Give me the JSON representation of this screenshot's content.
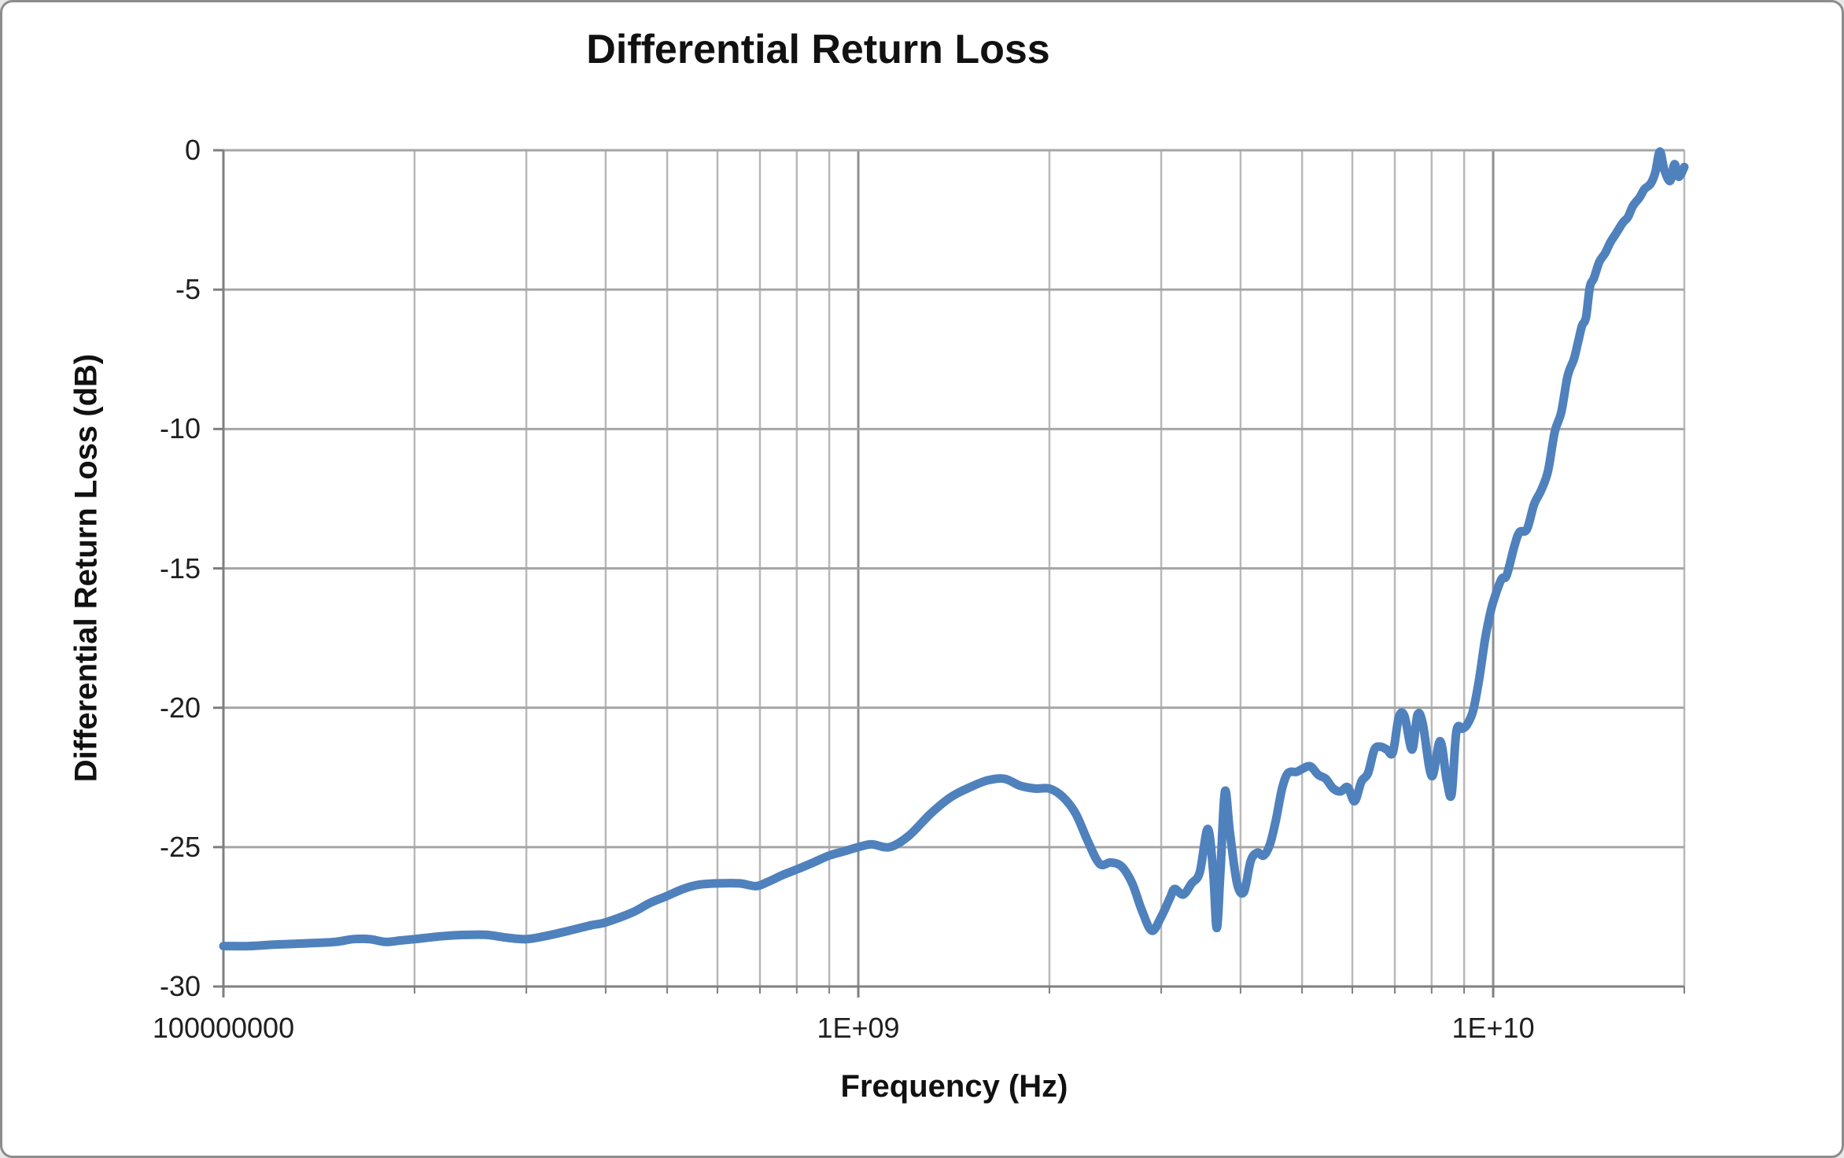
{
  "chart_data": {
    "type": "line",
    "title": "Differential Return Loss",
    "xlabel": "Frequency (Hz)",
    "ylabel": "Differential Return Loss (dB)",
    "x_scale": "log",
    "x_range": [
      100000000.0,
      20000000000.0
    ],
    "y_range": [
      -30,
      0
    ],
    "grid": true,
    "legend": "none",
    "y_ticks": [
      0,
      -5,
      -10,
      -15,
      -20,
      -25,
      -30
    ],
    "y_tick_labels": [
      "0",
      "-5",
      "-10",
      "-15",
      "-20",
      "-25",
      "-30"
    ],
    "x_ticks": [
      {
        "value": 100000000.0,
        "label": "100000000"
      },
      {
        "value": 1000000000.0,
        "label": "1E+09"
      },
      {
        "value": 10000000000.0,
        "label": "1E+10"
      }
    ],
    "colors": {
      "series": "#4f81bd",
      "grid_horizontal": "#a6a6a6",
      "grid_minor_vertical": "#b8b8b8",
      "grid_decade_vertical": "#8f8f8f",
      "axis": "#7f7f7f",
      "text": "#1f1f1f"
    },
    "series": [
      {
        "name": "Differential Return Loss",
        "points": [
          [
            100000000.0,
            -28.55
          ],
          [
            110000000.0,
            -28.55
          ],
          [
            120000000.0,
            -28.5
          ],
          [
            135000000.0,
            -28.45
          ],
          [
            150000000.0,
            -28.4
          ],
          [
            160000000.0,
            -28.3
          ],
          [
            170000000.0,
            -28.3
          ],
          [
            180000000.0,
            -28.4
          ],
          [
            190000000.0,
            -28.35
          ],
          [
            200000000.0,
            -28.3
          ],
          [
            220000000.0,
            -28.2
          ],
          [
            240000000.0,
            -28.15
          ],
          [
            260000000.0,
            -28.15
          ],
          [
            280000000.0,
            -28.25
          ],
          [
            300000000.0,
            -28.3
          ],
          [
            320000000.0,
            -28.2
          ],
          [
            350000000.0,
            -28.0
          ],
          [
            380000000.0,
            -27.8
          ],
          [
            400000000.0,
            -27.7
          ],
          [
            440000000.0,
            -27.35
          ],
          [
            470000000.0,
            -27.0
          ],
          [
            500000000.0,
            -26.75
          ],
          [
            530000000.0,
            -26.5
          ],
          [
            560000000.0,
            -26.35
          ],
          [
            600000000.0,
            -26.3
          ],
          [
            650000000.0,
            -26.3
          ],
          [
            690000000.0,
            -26.4
          ],
          [
            720000000.0,
            -26.25
          ],
          [
            760000000.0,
            -26.0
          ],
          [
            800000000.0,
            -25.8
          ],
          [
            850000000.0,
            -25.55
          ],
          [
            900000000.0,
            -25.3
          ],
          [
            950000000.0,
            -25.15
          ],
          [
            1000000000.0,
            -25.0
          ],
          [
            1050000000.0,
            -24.9
          ],
          [
            1120000000.0,
            -25.0
          ],
          [
            1200000000.0,
            -24.6
          ],
          [
            1300000000.0,
            -23.8
          ],
          [
            1400000000.0,
            -23.2
          ],
          [
            1500000000.0,
            -22.85
          ],
          [
            1600000000.0,
            -22.6
          ],
          [
            1700000000.0,
            -22.55
          ],
          [
            1800000000.0,
            -22.8
          ],
          [
            1900000000.0,
            -22.9
          ],
          [
            2000000000.0,
            -22.9
          ],
          [
            2100000000.0,
            -23.2
          ],
          [
            2200000000.0,
            -23.8
          ],
          [
            2300000000.0,
            -24.8
          ],
          [
            2400000000.0,
            -25.6
          ],
          [
            2500000000.0,
            -25.55
          ],
          [
            2600000000.0,
            -25.7
          ],
          [
            2700000000.0,
            -26.3
          ],
          [
            2800000000.0,
            -27.3
          ],
          [
            2900000000.0,
            -28.0
          ],
          [
            3000000000.0,
            -27.5
          ],
          [
            3100000000.0,
            -26.8
          ],
          [
            3150000000.0,
            -26.5
          ],
          [
            3250000000.0,
            -26.7
          ],
          [
            3350000000.0,
            -26.3
          ],
          [
            3450000000.0,
            -25.9
          ],
          [
            3550000000.0,
            -24.35
          ],
          [
            3620000000.0,
            -25.8
          ],
          [
            3670000000.0,
            -27.9
          ],
          [
            3720000000.0,
            -25.8
          ],
          [
            3780000000.0,
            -23.0
          ],
          [
            3850000000.0,
            -24.5
          ],
          [
            3950000000.0,
            -26.3
          ],
          [
            4050000000.0,
            -26.6
          ],
          [
            4150000000.0,
            -25.5
          ],
          [
            4250000000.0,
            -25.2
          ],
          [
            4350000000.0,
            -25.3
          ],
          [
            4450000000.0,
            -24.9
          ],
          [
            4550000000.0,
            -24.0
          ],
          [
            4650000000.0,
            -22.9
          ],
          [
            4750000000.0,
            -22.35
          ],
          [
            4900000000.0,
            -22.3
          ],
          [
            5000000000.0,
            -22.2
          ],
          [
            5150000000.0,
            -22.1
          ],
          [
            5300000000.0,
            -22.4
          ],
          [
            5450000000.0,
            -22.55
          ],
          [
            5600000000.0,
            -22.9
          ],
          [
            5750000000.0,
            -23.0
          ],
          [
            5900000000.0,
            -22.85
          ],
          [
            6050000000.0,
            -23.35
          ],
          [
            6200000000.0,
            -22.65
          ],
          [
            6350000000.0,
            -22.35
          ],
          [
            6500000000.0,
            -21.5
          ],
          [
            6650000000.0,
            -21.4
          ],
          [
            6800000000.0,
            -21.5
          ],
          [
            6950000000.0,
            -21.6
          ],
          [
            7100000000.0,
            -20.35
          ],
          [
            7250000000.0,
            -20.3
          ],
          [
            7450000000.0,
            -21.5
          ],
          [
            7600000000.0,
            -20.25
          ],
          [
            7750000000.0,
            -20.6
          ],
          [
            8000000000.0,
            -22.45
          ],
          [
            8250000000.0,
            -21.2
          ],
          [
            8450000000.0,
            -22.6
          ],
          [
            8600000000.0,
            -23.1
          ],
          [
            8750000000.0,
            -20.85
          ],
          [
            8950000000.0,
            -20.75
          ],
          [
            9100000000.0,
            -20.6
          ],
          [
            9300000000.0,
            -20.1
          ],
          [
            9500000000.0,
            -19.0
          ],
          [
            9700000000.0,
            -17.6
          ],
          [
            9850000000.0,
            -16.8
          ],
          [
            10000000000.0,
            -16.2
          ],
          [
            10300000000.0,
            -15.4
          ],
          [
            10500000000.0,
            -15.25
          ],
          [
            10800000000.0,
            -14.2
          ],
          [
            11000000000.0,
            -13.7
          ],
          [
            11300000000.0,
            -13.6
          ],
          [
            11600000000.0,
            -12.7
          ],
          [
            11900000000.0,
            -12.2
          ],
          [
            12200000000.0,
            -11.5
          ],
          [
            12500000000.0,
            -10.1
          ],
          [
            12800000000.0,
            -9.4
          ],
          [
            13100000000.0,
            -8.1
          ],
          [
            13400000000.0,
            -7.5
          ],
          [
            13600000000.0,
            -6.9
          ],
          [
            13800000000.0,
            -6.3
          ],
          [
            14000000000.0,
            -6.0
          ],
          [
            14200000000.0,
            -4.9
          ],
          [
            14400000000.0,
            -4.6
          ],
          [
            14700000000.0,
            -4.0
          ],
          [
            15000000000.0,
            -3.7
          ],
          [
            15300000000.0,
            -3.3
          ],
          [
            15600000000.0,
            -3.0
          ],
          [
            16000000000.0,
            -2.6
          ],
          [
            16300000000.0,
            -2.4
          ],
          [
            16600000000.0,
            -2.0
          ],
          [
            17000000000.0,
            -1.7
          ],
          [
            17300000000.0,
            -1.4
          ],
          [
            17700000000.0,
            -1.2
          ],
          [
            18000000000.0,
            -0.8
          ],
          [
            18300000000.0,
            -0.05
          ],
          [
            18600000000.0,
            -0.7
          ],
          [
            19000000000.0,
            -1.1
          ],
          [
            19300000000.0,
            -0.5
          ],
          [
            19600000000.0,
            -0.95
          ],
          [
            20000000000.0,
            -0.6
          ]
        ]
      }
    ]
  }
}
